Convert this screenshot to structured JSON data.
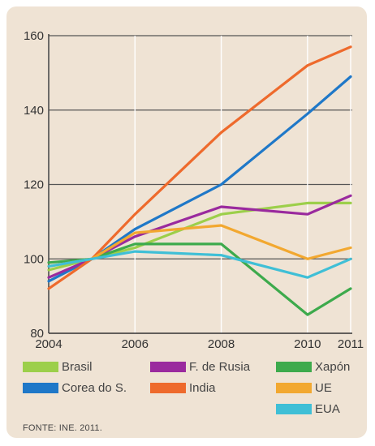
{
  "chart_data": {
    "type": "line",
    "title": "",
    "xlabel": "",
    "ylabel": "",
    "x": [
      "2004",
      "2005",
      "2006",
      "2008",
      "2010",
      "2011"
    ],
    "x_ticks": [
      "2004",
      "2006",
      "2008",
      "2010",
      "2011"
    ],
    "ylim": [
      80,
      160
    ],
    "y_ticks": [
      80,
      100,
      120,
      140,
      160
    ],
    "grid": "horizontal",
    "legend_position": "bottom",
    "series": [
      {
        "name": "Brasil",
        "color": "#9ccf4a",
        "values": [
          97,
          100,
          103,
          112,
          115,
          115
        ]
      },
      {
        "name": "Corea do S.",
        "color": "#1f78c8",
        "values": [
          94,
          100,
          108,
          120,
          139,
          149
        ]
      },
      {
        "name": "F. de Rusia",
        "color": "#9a2a9e",
        "values": [
          95,
          100,
          106,
          114,
          112,
          117
        ]
      },
      {
        "name": "India",
        "color": "#ee6a2c",
        "values": [
          92,
          100,
          112,
          134,
          152,
          157
        ]
      },
      {
        "name": "Xapón",
        "color": "#3daa4c",
        "values": [
          99,
          100,
          104,
          104,
          85,
          92
        ]
      },
      {
        "name": "UE",
        "color": "#f2a830",
        "values": [
          98,
          100,
          107,
          109,
          100,
          103
        ]
      },
      {
        "name": "EUA",
        "color": "#3fbfd6",
        "values": [
          98,
          100,
          102,
          101,
          95,
          100
        ]
      }
    ],
    "source": "FONTE: INE. 2011."
  }
}
